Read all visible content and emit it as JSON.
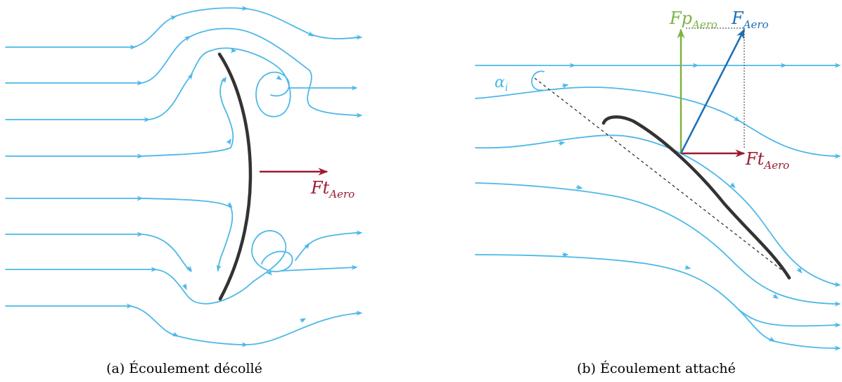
{
  "colors": {
    "streamline": "#4db8e8",
    "blade": "#333333",
    "force_tangential": "#9b1b30",
    "force_normal": "#7cb342",
    "force_resultant": "#1a6fb5",
    "chord_line": "#333333"
  },
  "panel_a": {
    "caption": "(a) Écoulement décollé",
    "force_t": {
      "main": "Ft",
      "sub": "Aero"
    }
  },
  "panel_b": {
    "caption": "(b) Écoulement attaché",
    "angle_label": {
      "main": "α",
      "sub": "i"
    },
    "force_p": {
      "main": "Fp",
      "sub": "Aero"
    },
    "force_resultant": {
      "main": "F",
      "sub": "Aero"
    },
    "force_t": {
      "main": "Ft",
      "sub": "Aero"
    }
  }
}
